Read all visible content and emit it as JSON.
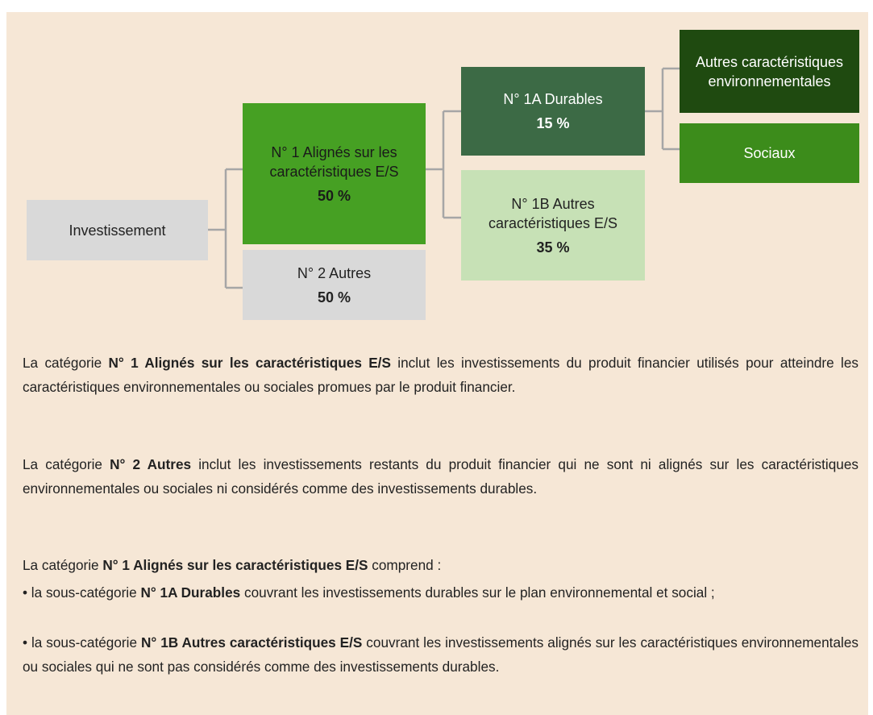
{
  "nodes": [
    {
      "label": "Investissement"
    },
    {
      "label": "N° 1 Alignés sur les caractéristiques E/S",
      "value": "50 %"
    },
    {
      "label": "N° 2 Autres",
      "value": "50 %"
    },
    {
      "label": "N° 1A Durables",
      "value": "15 %"
    },
    {
      "label": "N° 1B Autres caractéristiques E/S",
      "value": "35 %"
    },
    {
      "label": "Autres caractéristiques environnementales"
    },
    {
      "label": "Sociaux"
    }
  ],
  "paragraphs": [
    {
      "lead": "La catégorie ",
      "term": "N° 1 Alignés sur les caractéristiques E/S",
      "rest": " inclut les investissements du produit financier utilisés pour atteindre les caractéristiques environnementales ou sociales promues par le produit financier."
    },
    {
      "lead": "La catégorie ",
      "term": "N° 2 Autres",
      "rest": " inclut les investissements restants du produit financier qui ne sont ni alignés sur les caractéristiques environnementales ou sociales ni considérés comme des investissements durables."
    },
    {
      "lead": "La catégorie ",
      "term": "N° 1 Alignés sur les caractéristiques E/S",
      "rest": " comprend :"
    },
    {
      "lead": "• la sous-catégorie ",
      "term": "N° 1A Durables",
      "rest": " couvrant les investissements durables sur le plan environnemental et social ;"
    },
    {
      "lead": "• la sous-catégorie ",
      "term": "N° 1B Autres caractéristiques E/S",
      "rest": " couvrant les investissements alignés sur les caractéristiques environnementales ou sociales qui ne sont pas considérés comme des investissements durables."
    }
  ]
}
